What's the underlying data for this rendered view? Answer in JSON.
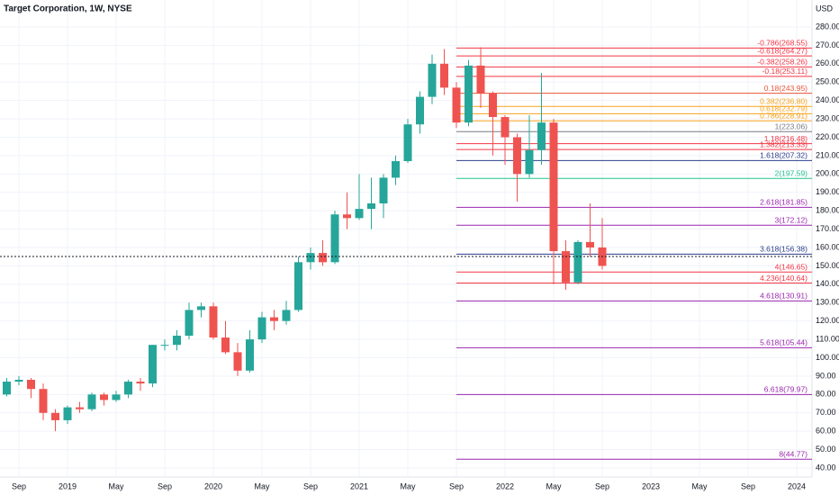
{
  "chart_data": {
    "type": "candlestick",
    "title": "Target Corporation, 1W, NYSE",
    "y_unit": "USD",
    "categories": [
      null,
      "Sep",
      null,
      null,
      null,
      "2019",
      null,
      null,
      null,
      "May",
      null,
      null,
      null,
      "Sep",
      null,
      null,
      null,
      "2020",
      null,
      null,
      null,
      "May",
      null,
      null,
      null,
      "Sep",
      null,
      null,
      null,
      "2021",
      null,
      null,
      null,
      "May",
      null,
      null,
      null,
      "Sep",
      null,
      null,
      null,
      "2022",
      null,
      null,
      null,
      "May",
      null,
      null,
      null,
      "Sep",
      null,
      null,
      null,
      "2023",
      null,
      null,
      null,
      "May",
      null,
      null,
      null,
      "Sep",
      null,
      null,
      null,
      "2024"
    ],
    "open": [
      80,
      87,
      88,
      83,
      70,
      66,
      73,
      72,
      80,
      77,
      80,
      87,
      86,
      107,
      107,
      112,
      126,
      128,
      111,
      103,
      93,
      110,
      122,
      120,
      126,
      152,
      157,
      152,
      178,
      176,
      181,
      184,
      198,
      207,
      227,
      242,
      260,
      247,
      228,
      259,
      244,
      231,
      220,
      200,
      213,
      228,
      158,
      141,
      163,
      160,
      null,
      null,
      null,
      null,
      null,
      null,
      null,
      null,
      null,
      null,
      null,
      null,
      null,
      null,
      null,
      null
    ],
    "high": [
      89,
      90,
      89,
      86,
      72,
      74,
      76,
      81,
      81,
      82,
      88,
      89,
      107,
      110,
      115,
      130,
      130,
      130,
      120,
      108,
      115,
      125,
      126,
      131,
      155,
      160,
      164,
      180,
      190,
      200,
      198,
      200,
      210,
      230,
      245,
      265,
      268,
      250,
      262,
      269,
      245,
      232,
      222,
      232,
      255,
      230,
      164,
      164,
      184,
      176,
      null,
      null,
      null,
      null,
      null,
      null,
      null,
      null,
      null,
      null,
      null,
      null,
      null,
      null,
      null,
      null
    ],
    "low": [
      79,
      85,
      78,
      66,
      60,
      64,
      70,
      71,
      74,
      76,
      78,
      82,
      84,
      104,
      104,
      110,
      122,
      110,
      102,
      90,
      92,
      108,
      115,
      118,
      125,
      148,
      150,
      151,
      170,
      175,
      170,
      176,
      194,
      206,
      222,
      238,
      243,
      225,
      226,
      236,
      210,
      205,
      185,
      198,
      205,
      140,
      137,
      140,
      155,
      148,
      null,
      null,
      null,
      null,
      null,
      null,
      null,
      null,
      null,
      null,
      null,
      null,
      null,
      null,
      null,
      null
    ],
    "close": [
      87,
      88,
      83,
      70,
      66,
      73,
      72,
      80,
      77,
      80,
      87,
      86,
      107,
      107,
      112,
      126,
      128,
      111,
      103,
      93,
      110,
      122,
      120,
      126,
      152,
      157,
      152,
      178,
      176,
      181,
      184,
      198,
      207,
      227,
      242,
      260,
      247,
      228,
      259,
      244,
      231,
      220,
      200,
      213,
      228,
      158,
      141,
      163,
      160,
      150,
      null,
      null,
      null,
      null,
      null,
      null,
      null,
      null,
      null,
      null,
      null,
      null,
      null,
      null,
      null,
      null
    ],
    "up_color": "#26a69a",
    "down_color": "#ef5350",
    "last_price": 155.1,
    "ylim": [
      40,
      280
    ],
    "yticks": [
      {
        "value": 40,
        "label": "40.00"
      },
      {
        "value": 50,
        "label": "50.00"
      },
      {
        "value": 60,
        "label": "60.00"
      },
      {
        "value": 70,
        "label": "70.00"
      },
      {
        "value": 80,
        "label": "80.00"
      },
      {
        "value": 90,
        "label": "90.00"
      },
      {
        "value": 100,
        "label": "100.00"
      },
      {
        "value": 110,
        "label": "110.00"
      },
      {
        "value": 120,
        "label": "120.00"
      },
      {
        "value": 130,
        "label": "130.00"
      },
      {
        "value": 140,
        "label": "140.00"
      },
      {
        "value": 150,
        "label": "150.00"
      },
      {
        "value": 160,
        "label": "160.00"
      },
      {
        "value": 170,
        "label": "170.00"
      },
      {
        "value": 180,
        "label": "180.00"
      },
      {
        "value": 190,
        "label": "190.00"
      },
      {
        "value": 200,
        "label": "200.00"
      },
      {
        "value": 210,
        "label": "210.00"
      },
      {
        "value": 220,
        "label": "220.00"
      },
      {
        "value": 230,
        "label": "230.00"
      },
      {
        "value": 240,
        "label": "240.00"
      },
      {
        "value": 250,
        "label": "250.00"
      },
      {
        "value": 260,
        "label": "260.00"
      },
      {
        "value": 270,
        "label": "270.00"
      },
      {
        "value": 280,
        "label": "280.00"
      }
    ],
    "grid": true,
    "fib_levels": [
      {
        "label": "-0.786(268.55)",
        "value": 268.55,
        "color": "#f23645"
      },
      {
        "label": "-0.618(264.27)",
        "value": 264.27,
        "color": "#f23645"
      },
      {
        "label": "-0.382(258.26)",
        "value": 258.26,
        "color": "#f23645"
      },
      {
        "label": "-0.18(253.11)",
        "value": 253.11,
        "color": "#f23645"
      },
      {
        "label": "0.18(243.95)",
        "value": 243.95,
        "color": "#e8553a"
      },
      {
        "label": "0.382(236.80)",
        "value": 236.8,
        "color": "#f7a21b"
      },
      {
        "label": "0.618(232.79)",
        "value": 232.79,
        "color": "#f7a21b"
      },
      {
        "label": "0.786(228.91)",
        "value": 228.91,
        "color": "#f7a21b"
      },
      {
        "label": "1(223.06)",
        "value": 223.06,
        "color": "#787b86"
      },
      {
        "label": "1.18(216.48)",
        "value": 216.48,
        "color": "#f23645"
      },
      {
        "label": "1.382(213.33)",
        "value": 213.33,
        "color": "#f23645"
      },
      {
        "label": "1.618(207.32)",
        "value": 207.32,
        "color": "#2c3e8c"
      },
      {
        "label": "2(197.59)",
        "value": 197.59,
        "color": "#22c28e"
      },
      {
        "label": "2.618(181.85)",
        "value": 181.85,
        "color": "#9c27b0"
      },
      {
        "label": "3(172.12)",
        "value": 172.12,
        "color": "#9c27b0"
      },
      {
        "label": "3.618(156.38)",
        "value": 156.38,
        "color": "#2c3e8c"
      },
      {
        "label": "4(146.65)",
        "value": 146.65,
        "color": "#f23645"
      },
      {
        "label": "4.236(140.64)",
        "value": 140.64,
        "color": "#f23645"
      },
      {
        "label": "4.618(130.91)",
        "value": 130.91,
        "color": "#9c27b0"
      },
      {
        "label": "5.618(105.44)",
        "value": 105.44,
        "color": "#9c27b0"
      },
      {
        "label": "6.618(79.97)",
        "value": 79.97,
        "color": "#9c27b0"
      },
      {
        "label": "8(44.77)",
        "value": 44.77,
        "color": "#9c27b0"
      }
    ]
  }
}
